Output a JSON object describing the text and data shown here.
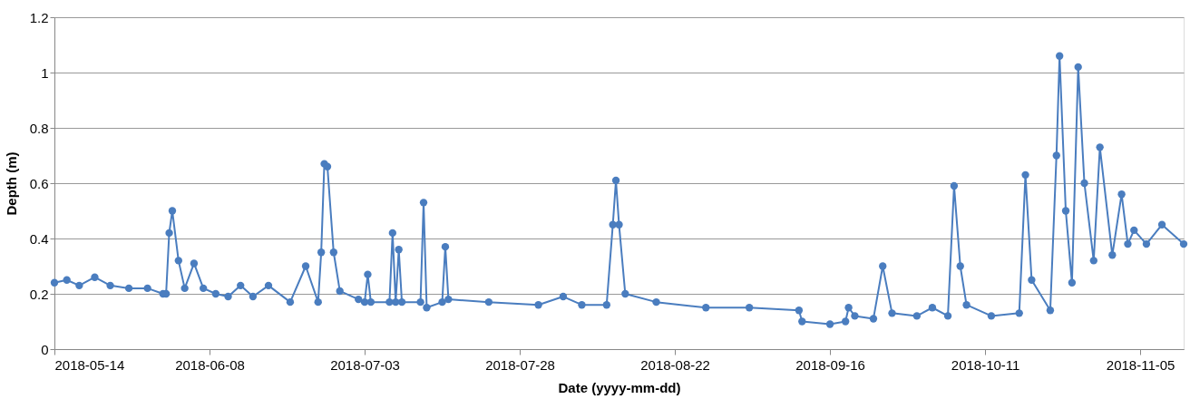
{
  "chart_data": {
    "type": "line",
    "xlabel": "Date (yyyy-mm-dd)",
    "ylabel": "Depth (m)",
    "x": [
      "2018-05-14",
      "2018-05-16",
      "2018-05-18",
      "2018-05-20T12:00",
      "2018-05-23",
      "2018-05-26",
      "2018-05-29",
      "2018-05-31T12:00",
      "2018-06-01",
      "2018-06-01T12:00",
      "2018-06-02",
      "2018-06-03",
      "2018-06-04",
      "2018-06-05T12:00",
      "2018-06-07",
      "2018-06-09",
      "2018-06-11",
      "2018-06-13",
      "2018-06-15",
      "2018-06-17T12:00",
      "2018-06-21",
      "2018-06-23T12:00",
      "2018-06-25T12:00",
      "2018-06-26",
      "2018-06-26T12:00",
      "2018-06-27",
      "2018-06-28",
      "2018-06-29",
      "2018-07-02",
      "2018-07-03",
      "2018-07-03T12:00",
      "2018-07-04",
      "2018-07-07",
      "2018-07-07T12:00",
      "2018-07-08",
      "2018-07-08T12:00",
      "2018-07-09",
      "2018-07-12",
      "2018-07-12T12:00",
      "2018-07-13",
      "2018-07-15T12:00",
      "2018-07-16",
      "2018-07-16T12:00",
      "2018-07-23",
      "2018-07-31",
      "2018-08-04",
      "2018-08-07",
      "2018-08-11",
      "2018-08-12",
      "2018-08-12T12:00",
      "2018-08-13",
      "2018-08-14",
      "2018-08-19",
      "2018-08-27",
      "2018-09-03",
      "2018-09-11",
      "2018-09-11T12:00",
      "2018-09-16",
      "2018-09-18T12:00",
      "2018-09-19",
      "2018-09-20",
      "2018-09-23",
      "2018-09-24T12:00",
      "2018-09-26",
      "2018-09-30",
      "2018-10-02T12:00",
      "2018-10-05",
      "2018-10-06",
      "2018-10-07",
      "2018-10-08",
      "2018-10-12",
      "2018-10-16T12:00",
      "2018-10-17T12:00",
      "2018-10-18T12:00",
      "2018-10-21T12:00",
      "2018-10-22T12:00",
      "2018-10-23",
      "2018-10-24",
      "2018-10-25",
      "2018-10-26",
      "2018-10-27",
      "2018-10-28T12:00",
      "2018-10-29T12:00",
      "2018-10-31T12:00",
      "2018-11-02",
      "2018-11-03",
      "2018-11-04",
      "2018-11-06",
      "2018-11-08T12:00",
      "2018-11-12"
    ],
    "series": [
      {
        "color": "#4a7dbf",
        "values": [
          0.24,
          0.25,
          0.23,
          0.26,
          0.23,
          0.22,
          0.22,
          0.2,
          0.2,
          0.42,
          0.5,
          0.32,
          0.22,
          0.31,
          0.22,
          0.2,
          0.19,
          0.23,
          0.19,
          0.23,
          0.17,
          0.3,
          0.17,
          0.35,
          0.67,
          0.66,
          0.35,
          0.21,
          0.18,
          0.17,
          0.27,
          0.17,
          0.17,
          0.42,
          0.17,
          0.36,
          0.17,
          0.17,
          0.53,
          0.15,
          0.17,
          0.37,
          0.18,
          0.17,
          0.16,
          0.19,
          0.16,
          0.16,
          0.45,
          0.61,
          0.45,
          0.2,
          0.17,
          0.15,
          0.15,
          0.14,
          0.1,
          0.09,
          0.1,
          0.15,
          0.12,
          0.11,
          0.3,
          0.13,
          0.12,
          0.15,
          0.12,
          0.59,
          0.3,
          0.16,
          0.12,
          0.13,
          0.63,
          0.25,
          0.14,
          0.7,
          1.06,
          0.5,
          0.24,
          1.02,
          0.6,
          0.32,
          0.73,
          0.34,
          0.56,
          0.38,
          0.43,
          0.38,
          0.45,
          0.38
        ]
      }
    ],
    "xlim": [
      "2018-05-14",
      "2018-11-12"
    ],
    "xticks": [
      "2018-05-14",
      "2018-06-08",
      "2018-07-03",
      "2018-07-28",
      "2018-08-22",
      "2018-09-16",
      "2018-10-11",
      "2018-11-05"
    ],
    "ylim": [
      0,
      1.2
    ],
    "yticks": [
      0,
      0.2,
      0.4,
      0.6,
      0.8,
      1,
      1.2
    ],
    "grid": "y",
    "marker": "circle",
    "line_style": "solid"
  }
}
